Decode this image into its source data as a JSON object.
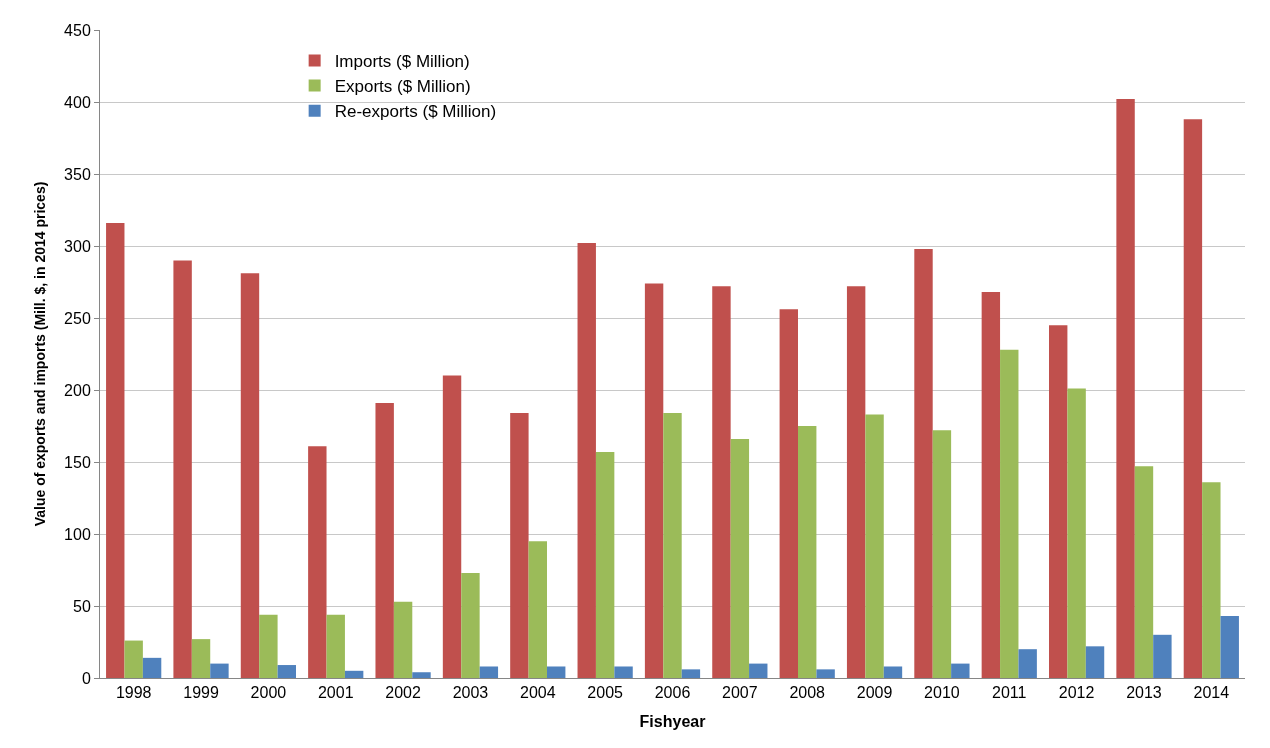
{
  "chart_data": {
    "type": "bar",
    "xlabel": "Fishyear",
    "ylabel": "Value of exports and imports (Mill. $, in 2014 prices)",
    "categories": [
      "1998",
      "1999",
      "2000",
      "2001",
      "2002",
      "2003",
      "2004",
      "2005",
      "2006",
      "2007",
      "2008",
      "2009",
      "2010",
      "2011",
      "2012",
      "2013",
      "2014"
    ],
    "series": [
      {
        "name": "Imports ($ Million)",
        "color": "#c0504d",
        "values": [
          316,
          290,
          281,
          161,
          191,
          210,
          184,
          302,
          274,
          272,
          256,
          272,
          298,
          268,
          245,
          402,
          388
        ]
      },
      {
        "name": "Exports ($ Million)",
        "color": "#9bbb59",
        "values": [
          26,
          27,
          44,
          44,
          53,
          73,
          95,
          157,
          184,
          166,
          175,
          183,
          172,
          228,
          201,
          147,
          136
        ]
      },
      {
        "name": "Re-exports ($ Million)",
        "color": "#4f81bd",
        "values": [
          14,
          10,
          9,
          5,
          4,
          8,
          8,
          8,
          6,
          10,
          6,
          8,
          10,
          20,
          22,
          30,
          43
        ]
      }
    ],
    "ylim": [
      0,
      450
    ],
    "yticks": [
      0,
      50,
      100,
      150,
      200,
      250,
      300,
      350,
      400,
      450
    ],
    "grid": "y",
    "legend": "top left"
  }
}
